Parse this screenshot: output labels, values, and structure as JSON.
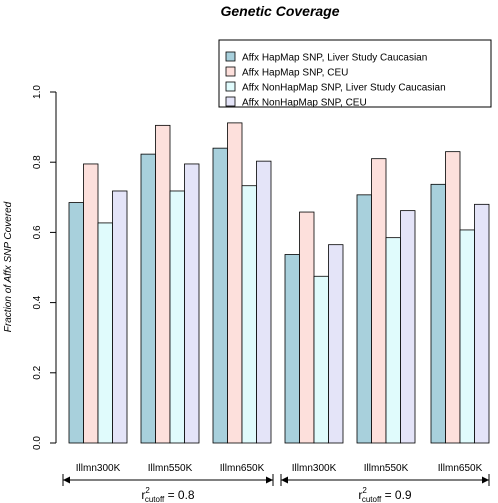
{
  "chart_data": {
    "type": "bar",
    "title": "Genetic Coverage",
    "xlabel": "",
    "ylabel": "Fraction of Affx SNP Covered",
    "ylim": [
      0,
      1
    ],
    "yticks": [
      "0.0",
      "0.2",
      "0.4",
      "0.6",
      "0.8",
      "1.0"
    ],
    "grid": false,
    "legend_position": "top-right",
    "categories": [
      "Illmn300K",
      "Illmn550K",
      "Illmn650K",
      "Illmn300K",
      "Illmn550K",
      "Illmn650K"
    ],
    "series": [
      {
        "name": "Affx HapMap SNP, Liver Study Caucasian",
        "color": "#a8d0dc",
        "values": [
          0.685,
          0.823,
          0.84,
          0.537,
          0.707,
          0.737
        ]
      },
      {
        "name": "Affx HapMap SNP, CEU",
        "color": "#fde0dc",
        "values": [
          0.795,
          0.905,
          0.912,
          0.658,
          0.81,
          0.83
        ]
      },
      {
        "name": "Affx NonHapMap SNP, Liver Study Caucasian",
        "color": "#e0fbfc",
        "values": [
          0.627,
          0.718,
          0.733,
          0.475,
          0.585,
          0.607
        ]
      },
      {
        "name": "Affx NonHapMap SNP, CEU",
        "color": "#e4e4f8",
        "values": [
          0.718,
          0.795,
          0.803,
          0.565,
          0.662,
          0.68
        ]
      }
    ],
    "groups": [
      {
        "label_main": "r",
        "label_sup": "2",
        "label_sub": "cutoff",
        "label_value": " = 0.8",
        "categories": [
          0,
          1,
          2
        ]
      },
      {
        "label_main": "r",
        "label_sup": "2",
        "label_sub": "cutoff",
        "label_value": " = 0.9",
        "categories": [
          3,
          4,
          5
        ]
      }
    ]
  }
}
